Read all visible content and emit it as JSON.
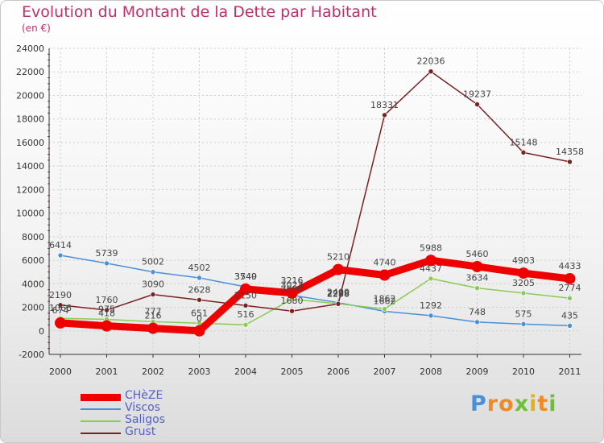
{
  "header": {
    "title": "Evolution du Montant de la Dette par Habitant",
    "subtitle": "(en €)"
  },
  "brand": {
    "letters": [
      "P",
      "r",
      "o",
      "x",
      "i",
      "t",
      "i"
    ],
    "colors": [
      "#4a90d9",
      "#f08a24",
      "#f08a24",
      "#6dbf3b",
      "#e0b020",
      "#f08a24",
      "#6dbf3b"
    ]
  },
  "colors": {
    "title": "#c0306e",
    "legend_text": "#5560c8",
    "grid": "#cccccc"
  },
  "chart_data": {
    "type": "line",
    "title": "Evolution du Montant de la Dette par Habitant",
    "subtitle": "(en €)",
    "x": [
      "2000",
      "2001",
      "2002",
      "2003",
      "2004",
      "2005",
      "2006",
      "2007",
      "2008",
      "2009",
      "2010",
      "2011"
    ],
    "ylim": [
      -2000,
      24000
    ],
    "yticks": [
      "-2000",
      "0",
      "2000",
      "4000",
      "6000",
      "8000",
      "10000",
      "12000",
      "14000",
      "16000",
      "18000",
      "20000",
      "22000",
      "24000"
    ],
    "grid": true,
    "legend_position": "bottom-left",
    "series": [
      {
        "name": "CHèZE",
        "color": "#ee0000",
        "values": [
          674,
          418,
          216,
          0,
          3549,
          3216,
          5210,
          4740,
          5988,
          5460,
          4903,
          4433
        ],
        "labels": [
          "674",
          "418",
          "216",
          "0",
          "3549",
          "3216",
          "5210",
          "4740",
          "5988",
          "5460",
          "4903",
          "4433"
        ]
      },
      {
        "name": "Viscos",
        "color": "#4a90d9",
        "values": [
          6414,
          5739,
          5002,
          4502,
          3740,
          3023,
          2400,
          1662,
          1292,
          748,
          575,
          435
        ],
        "labels": [
          "6414",
          "5739",
          "5002",
          "4502",
          "3740",
          "3023",
          "2400",
          "1662",
          "1292",
          "748",
          "575",
          "435"
        ]
      },
      {
        "name": "Saligos",
        "color": "#88cc55",
        "values": [
          1066,
          975,
          777,
          651,
          516,
          2690,
          2298,
          1862,
          4437,
          3634,
          3205,
          2774
        ],
        "labels": [
          "1066",
          "975",
          "777",
          "651",
          "516",
          "2690",
          "2298",
          "1862",
          "4437",
          "3634",
          "3205",
          "2774"
        ]
      },
      {
        "name": "Grust",
        "color": "#7a2222",
        "values": [
          2190,
          1760,
          3090,
          2628,
          2150,
          1680,
          2288,
          18331,
          22036,
          19237,
          15148,
          14358
        ],
        "labels": [
          "2190",
          "1760",
          "3090",
          "2628",
          "2150",
          "1680",
          "2288",
          "18331",
          "22036",
          "19237",
          "15148",
          "14358"
        ]
      }
    ]
  }
}
